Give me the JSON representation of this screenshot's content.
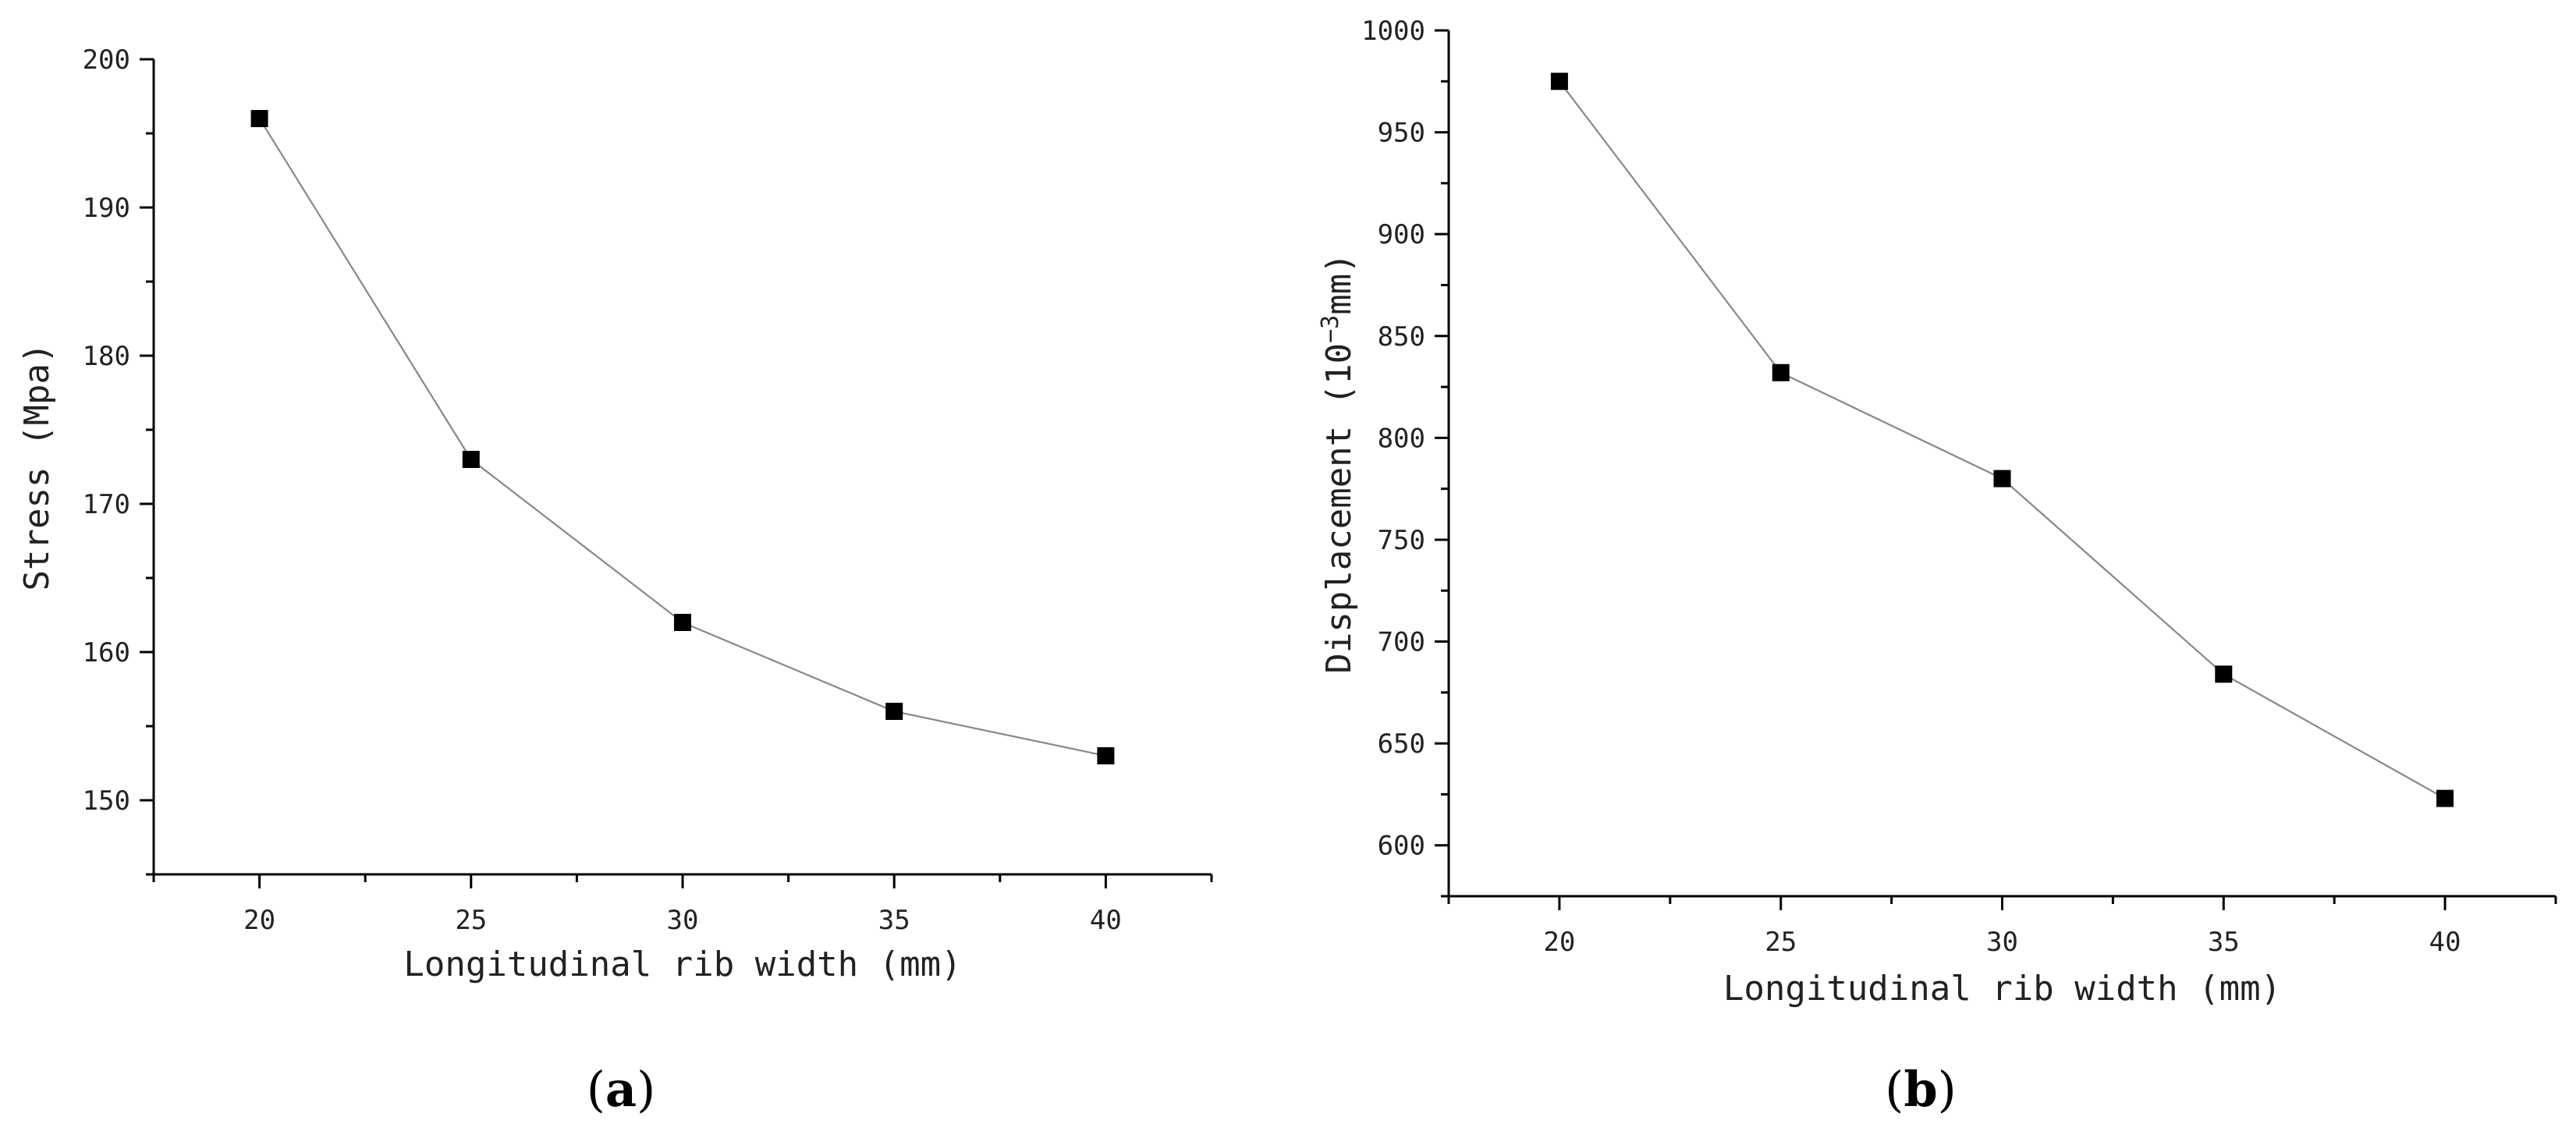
{
  "panels": [
    {
      "id": "a",
      "caption_letter": "a"
    },
    {
      "id": "b",
      "caption_letter": "b"
    }
  ],
  "chart_data": [
    {
      "type": "line",
      "xlabel": "Longitudinal rib width (mm)",
      "ylabel": "Stress (Mpa)",
      "x": [
        20,
        25,
        30,
        35,
        40
      ],
      "series": [
        {
          "values": [
            196,
            173,
            162,
            156,
            153
          ]
        }
      ],
      "xlim": [
        17.5,
        42.5
      ],
      "ylim": [
        145,
        200
      ],
      "xticks": [
        20,
        25,
        30,
        35,
        40
      ],
      "yticks": [
        150,
        160,
        170,
        180,
        190,
        200
      ],
      "marker": "square",
      "line_color": "#888888",
      "marker_color": "#000000",
      "grid": false
    },
    {
      "type": "line",
      "xlabel": "Longitudinal rib width (mm)",
      "ylabel": "Displacement (10",
      "ylabel_sup": "−3",
      "ylabel_tail": "mm)",
      "x": [
        20,
        25,
        30,
        35,
        40
      ],
      "series": [
        {
          "values": [
            975,
            832,
            780,
            684,
            623
          ]
        }
      ],
      "xlim": [
        17.5,
        42.5
      ],
      "ylim": [
        575,
        1000
      ],
      "xticks": [
        20,
        25,
        30,
        35,
        40
      ],
      "yticks": [
        600,
        650,
        700,
        750,
        800,
        850,
        900,
        950,
        1000
      ],
      "marker": "square",
      "line_color": "#888888",
      "marker_color": "#000000",
      "grid": false
    }
  ]
}
